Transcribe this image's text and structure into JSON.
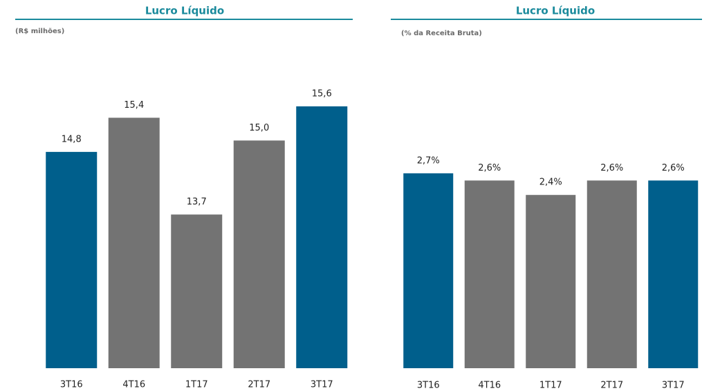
{
  "chart_data": [
    {
      "type": "bar",
      "title": "Lucro Líquido",
      "subtitle": "(R$ milhões)",
      "categories": [
        "3T16",
        "4T16",
        "1T17",
        "2T17",
        "3T17"
      ],
      "values": [
        14.8,
        15.4,
        13.7,
        15.0,
        15.6
      ],
      "value_labels": [
        "14,8",
        "15,4",
        "13,7",
        "15,0",
        "15,6"
      ],
      "colors": [
        "#005f8c",
        "#737373",
        "#737373",
        "#737373",
        "#005f8c"
      ],
      "ylim": [
        11,
        16
      ]
    },
    {
      "type": "bar",
      "title": "Lucro Líquido",
      "subtitle": "(% da Receita Bruta)",
      "categories": [
        "3T16",
        "4T16",
        "1T17",
        "2T17",
        "3T17"
      ],
      "values": [
        2.7,
        2.6,
        2.4,
        2.6,
        2.6
      ],
      "value_labels": [
        "2,7%",
        "2,6%",
        "2,4%",
        "2,6%",
        "2,6%"
      ],
      "colors": [
        "#005f8c",
        "#737373",
        "#737373",
        "#737373",
        "#005f8c"
      ],
      "ylim": [
        0,
        4
      ]
    }
  ]
}
